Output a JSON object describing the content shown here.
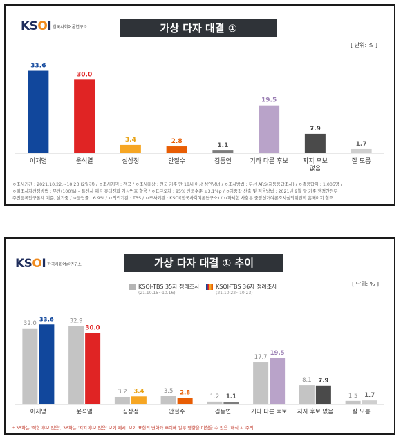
{
  "logo": {
    "mark_a": "KS",
    "mark_b": "O",
    "mark_c": "I",
    "sub": "한국사회여론연구소"
  },
  "panel1": {
    "title": "가상 다자 대결 ①",
    "unit": "[ 단위: % ]",
    "notes": [
      "ㅇ조사기간 : 2021.10.22.~10.23.(2일간)  / ㅇ조사지역 : 전국  / ㅇ조사대상 : 전국 거주 만 18세 이상 성인남녀  / ㅇ조사방법 : 무선 ARS(자동응답조사)  / ㅇ총응답자 : 1,005명 /",
      "ㅇ피조사자선정방법 : 무선(100%) – 통신사 제공 휴대전화 가상번호 활용  / ㅇ표본오차 : 95% 신뢰수준 ±3.1%p  / ㅇ가중값 산출 및 적용방법 : 2021년 9월 말 기준 행정안전부",
      "주민등록인구통계 기준, 셀가중  / ㅇ응답률 : 6.9%  / ㅇ의뢰기관 : TBS  / ㅇ조사기관 : KSOI(한국사회여론연구소)  / ㅇ자세한 사항은 중앙선거여론조사심의위원회 홈페이지 참조"
    ]
  },
  "panel2": {
    "title": "가상 다자 대결 ① 추이",
    "unit": "[ 단위: % ]",
    "legend": [
      {
        "label": "KSOI-TBS 35차 정례조사",
        "sub": "(21.10.15~10.16)"
      },
      {
        "label": "KSOI-TBS 36차 정례조사",
        "sub": "(21.10.22~10.23)"
      }
    ],
    "footnote": "* 35차는 '적합 후보 없음', 36차는 '지지 후보 없음' 보기 제시. 보기 표현의 변화가 추이에 일부 영향을 미쳤을 수 있음. 해석 시 주의."
  },
  "colors": {
    "c1": "#11479c",
    "c2": "#e02424",
    "c3": "#f6a623",
    "c4": "#e85d04",
    "c5": "#7d7d7d",
    "c6": "#b9a3c9",
    "c7": "#4a4a4a",
    "c8": "#cfcfcf",
    "prev": "#c4c4c4"
  },
  "chart_data": [
    {
      "type": "bar",
      "title": "가상 다자 대결 ①",
      "categories": [
        "이재명",
        "윤석열",
        "심상정",
        "안철수",
        "김동연",
        "기타 다른 후보",
        "지지 후보\n없음",
        "잘 모름"
      ],
      "values": [
        33.6,
        30.0,
        3.4,
        2.8,
        1.1,
        19.5,
        7.9,
        1.7
      ],
      "value_labels": [
        "33.6",
        "30.0",
        "3.4",
        "2.8",
        "1.1",
        "19.5",
        "7.9",
        "1.7"
      ],
      "ylim": [
        0,
        36
      ]
    },
    {
      "type": "bar",
      "title": "가상 다자 대결 ① 추이",
      "categories": [
        "이재명",
        "윤석열",
        "심상정",
        "안철수",
        "김동연",
        "기타 다른 후보",
        "지지 후보 없음",
        "잘 모름"
      ],
      "series": [
        {
          "name": "KSOI-TBS 35차 정례조사",
          "values": [
            32.0,
            32.9,
            3.2,
            3.5,
            1.2,
            17.7,
            8.1,
            1.5
          ],
          "value_labels": [
            "32.0",
            "32.9",
            "3.2",
            "3.5",
            "1.2",
            "17.7",
            "8.1",
            "1.5"
          ]
        },
        {
          "name": "KSOI-TBS 36차 정례조사",
          "values": [
            33.6,
            30.0,
            3.4,
            2.8,
            1.1,
            19.5,
            7.9,
            1.7
          ],
          "value_labels": [
            "33.6",
            "30.0",
            "3.4",
            "2.8",
            "1.1",
            "19.5",
            "7.9",
            "1.7"
          ]
        }
      ],
      "ylim": [
        0,
        36
      ]
    }
  ]
}
